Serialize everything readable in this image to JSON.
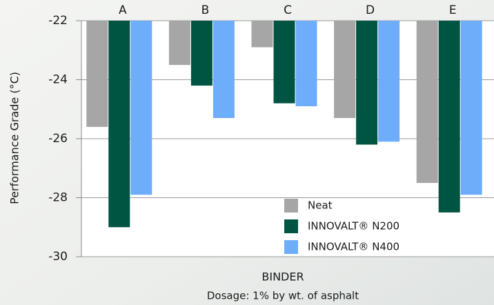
{
  "chart_data": {
    "type": "bar",
    "y_label": "Performance Grade (°C)",
    "x_label": "BINDER",
    "note": "Dosage:  1% by wt. of asphalt",
    "categories": [
      "A",
      "B",
      "C",
      "D",
      "E"
    ],
    "series": [
      {
        "name": "Neat",
        "color": "#a6a6a6",
        "values": [
          -25.6,
          -23.5,
          -22.9,
          -25.3,
          -27.5
        ]
      },
      {
        "name": "INNOVALT® N200",
        "color": "#005542",
        "values": [
          -29.0,
          -24.2,
          -24.8,
          -26.2,
          -28.5
        ]
      },
      {
        "name": "INNOVALT® N400",
        "color": "#6eadfa",
        "values": [
          -27.9,
          -25.3,
          -24.9,
          -26.1,
          -27.9
        ]
      }
    ],
    "ylim": [
      -30,
      -22
    ],
    "yticks": [
      -22,
      -24,
      -26,
      -28,
      -30
    ],
    "grid": true
  }
}
